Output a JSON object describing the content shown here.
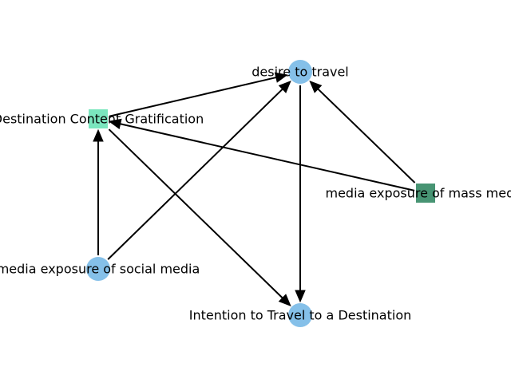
{
  "diagram": {
    "nodes": [
      {
        "id": "desire",
        "label": "desire to travel",
        "shape": "circle",
        "color": "#85C0E9"
      },
      {
        "id": "dcg",
        "label": "Destination Content Gratification",
        "shape": "square",
        "color": "#7AE6BE"
      },
      {
        "id": "mass",
        "label": "media exposure of mass media",
        "shape": "square",
        "color": "#479473"
      },
      {
        "id": "social",
        "label": "media exposure of social media",
        "shape": "circle",
        "color": "#85C0E9"
      },
      {
        "id": "intention",
        "label": "Intention to Travel to a Destination",
        "shape": "circle",
        "color": "#85C0E9"
      }
    ],
    "edges": [
      {
        "from": "dcg",
        "to": "desire"
      },
      {
        "from": "dcg",
        "to": "intention"
      },
      {
        "from": "social",
        "to": "dcg"
      },
      {
        "from": "social",
        "to": "desire"
      },
      {
        "from": "mass",
        "to": "desire"
      },
      {
        "from": "mass",
        "to": "dcg"
      },
      {
        "from": "desire",
        "to": "intention"
      }
    ]
  }
}
